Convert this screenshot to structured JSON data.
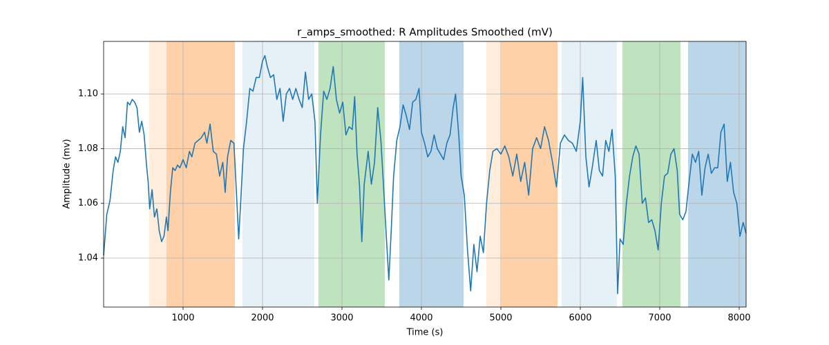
{
  "chart_data": {
    "type": "line",
    "title": "r_amps_smoothed: R Amplitudes Smoothed (mV)",
    "x_label": "Time (s)",
    "y_label": "Amplitude (mv)",
    "xlim": [
      0,
      8087
    ],
    "ylim": [
      1.0221,
      1.1192
    ],
    "xticks": [
      1000,
      2000,
      3000,
      4000,
      5000,
      6000,
      7000,
      8000
    ],
    "yticks": [
      1.04,
      1.06,
      1.08,
      {
        "value": 1.1,
        "label": "1.10"
      }
    ],
    "grid": true,
    "spans": [
      {
        "x0": 574,
        "x1": 1652,
        "color": "#ff7f0e",
        "alpha": 0.15
      },
      {
        "x0": 791,
        "x1": 1652,
        "color": "#ff7f0e",
        "alpha": 0.25
      },
      {
        "x0": 1748,
        "x1": 2652,
        "color": "#1f77b4",
        "alpha": 0.11
      },
      {
        "x0": 2704,
        "x1": 3539,
        "color": "#2ca02c",
        "alpha": 0.3
      },
      {
        "x0": 3722,
        "x1": 4530,
        "color": "#1f77b4",
        "alpha": 0.3
      },
      {
        "x0": 4817,
        "x1": 5713,
        "color": "#ff7f0e",
        "alpha": 0.15
      },
      {
        "x0": 5009,
        "x1": 5713,
        "color": "#ff7f0e",
        "alpha": 0.25
      },
      {
        "x0": 5765,
        "x1": 6461,
        "color": "#1f77b4",
        "alpha": 0.11
      },
      {
        "x0": 6530,
        "x1": 7261,
        "color": "#2ca02c",
        "alpha": 0.3
      },
      {
        "x0": 7357,
        "x1": 8087,
        "color": "#1f77b4",
        "alpha": 0.3
      }
    ],
    "x": [
      0,
      40,
      80,
      120,
      150,
      180,
      210,
      240,
      270,
      300,
      330,
      360,
      390,
      420,
      450,
      480,
      510,
      540,
      560,
      580,
      610,
      640,
      670,
      700,
      730,
      760,
      790,
      810,
      840,
      870,
      900,
      930,
      960,
      1000,
      1040,
      1080,
      1110,
      1150,
      1190,
      1230,
      1270,
      1300,
      1340,
      1380,
      1420,
      1460,
      1500,
      1530,
      1560,
      1600,
      1640,
      1670,
      1700,
      1730,
      1760,
      1800,
      1840,
      1880,
      1920,
      1960,
      2000,
      2030,
      2060,
      2100,
      2140,
      2180,
      2220,
      2260,
      2300,
      2340,
      2380,
      2420,
      2460,
      2500,
      2540,
      2580,
      2620,
      2660,
      2690,
      2730,
      2770,
      2810,
      2850,
      2890,
      2930,
      2970,
      3010,
      3050,
      3090,
      3130,
      3160,
      3190,
      3220,
      3250,
      3280,
      3330,
      3370,
      3410,
      3450,
      3490,
      3520,
      3560,
      3590,
      3620,
      3650,
      3690,
      3730,
      3770,
      3810,
      3850,
      3890,
      3930,
      3970,
      4000,
      4040,
      4080,
      4120,
      4160,
      4200,
      4240,
      4280,
      4320,
      4360,
      4400,
      4430,
      4470,
      4500,
      4540,
      4580,
      4620,
      4660,
      4700,
      4740,
      4780,
      4820,
      4860,
      4900,
      4950,
      5000,
      5050,
      5100,
      5150,
      5200,
      5250,
      5300,
      5350,
      5400,
      5450,
      5500,
      5550,
      5600,
      5650,
      5700,
      5750,
      5800,
      5850,
      5900,
      5950,
      6000,
      6030,
      6070,
      6110,
      6150,
      6200,
      6240,
      6280,
      6320,
      6360,
      6400,
      6440,
      6470,
      6500,
      6540,
      6580,
      6620,
      6660,
      6700,
      6740,
      6780,
      6820,
      6860,
      6900,
      6940,
      6980,
      7020,
      7060,
      7100,
      7140,
      7180,
      7220,
      7250,
      7290,
      7330,
      7370,
      7410,
      7450,
      7490,
      7530,
      7570,
      7610,
      7650,
      7690,
      7730,
      7770,
      7810,
      7850,
      7890,
      7930,
      7970,
      8010,
      8050,
      8087
    ],
    "series": [
      {
        "color": "#1f77b4",
        "values": [
          1.041,
          1.056,
          1.061,
          1.072,
          1.077,
          1.075,
          1.079,
          1.088,
          1.084,
          1.097,
          1.096,
          1.098,
          1.097,
          1.095,
          1.086,
          1.09,
          1.085,
          1.074,
          1.068,
          1.058,
          1.065,
          1.055,
          1.058,
          1.05,
          1.046,
          1.048,
          1.055,
          1.05,
          1.064,
          1.073,
          1.072,
          1.074,
          1.073,
          1.076,
          1.073,
          1.079,
          1.077,
          1.082,
          1.083,
          1.084,
          1.086,
          1.082,
          1.089,
          1.079,
          1.078,
          1.07,
          1.075,
          1.064,
          1.077,
          1.083,
          1.082,
          1.065,
          1.047,
          1.063,
          1.08,
          1.09,
          1.102,
          1.101,
          1.106,
          1.106,
          1.112,
          1.114,
          1.11,
          1.106,
          1.107,
          1.098,
          1.102,
          1.09,
          1.1,
          1.102,
          1.098,
          1.102,
          1.098,
          1.095,
          1.108,
          1.098,
          1.1,
          1.09,
          1.06,
          1.085,
          1.101,
          1.098,
          1.102,
          1.11,
          1.098,
          1.093,
          1.097,
          1.085,
          1.088,
          1.087,
          1.099,
          1.078,
          1.067,
          1.046,
          1.067,
          1.079,
          1.067,
          1.075,
          1.095,
          1.083,
          1.068,
          1.047,
          1.032,
          1.05,
          1.07,
          1.083,
          1.088,
          1.096,
          1.092,
          1.087,
          1.097,
          1.098,
          1.102,
          1.086,
          1.082,
          1.077,
          1.079,
          1.085,
          1.08,
          1.078,
          1.076,
          1.082,
          1.085,
          1.095,
          1.1,
          1.085,
          1.07,
          1.063,
          1.043,
          1.028,
          1.045,
          1.035,
          1.048,
          1.042,
          1.06,
          1.072,
          1.079,
          1.08,
          1.078,
          1.081,
          1.077,
          1.07,
          1.078,
          1.068,
          1.075,
          1.063,
          1.08,
          1.084,
          1.08,
          1.088,
          1.083,
          1.075,
          1.066,
          1.082,
          1.085,
          1.083,
          1.082,
          1.079,
          1.09,
          1.106,
          1.077,
          1.066,
          1.073,
          1.083,
          1.072,
          1.07,
          1.083,
          1.079,
          1.087,
          1.07,
          1.027,
          1.047,
          1.045,
          1.06,
          1.07,
          1.077,
          1.081,
          1.078,
          1.06,
          1.062,
          1.053,
          1.054,
          1.05,
          1.043,
          1.06,
          1.07,
          1.071,
          1.078,
          1.08,
          1.072,
          1.056,
          1.054,
          1.057,
          1.068,
          1.078,
          1.075,
          1.079,
          1.063,
          1.073,
          1.078,
          1.071,
          1.073,
          1.073,
          1.086,
          1.089,
          1.068,
          1.075,
          1.064,
          1.06,
          1.048,
          1.053,
          1.049
        ]
      }
    ]
  }
}
